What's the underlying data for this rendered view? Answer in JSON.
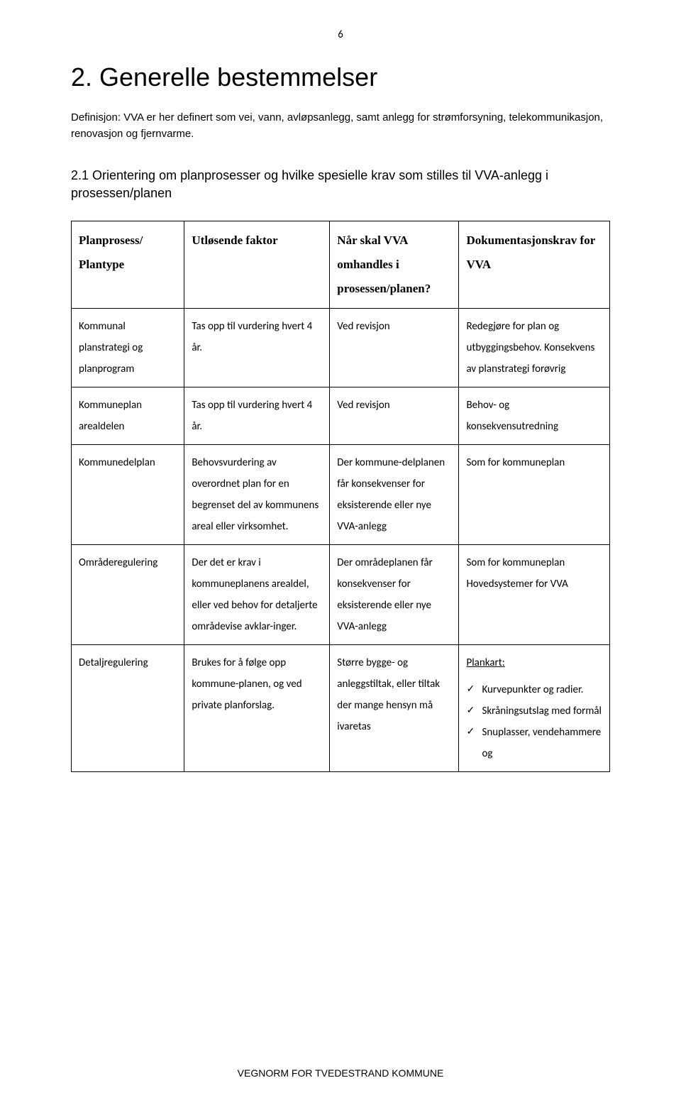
{
  "page_number": "6",
  "heading": "2. Generelle bestemmelser",
  "definition": "Definisjon: VVA er her definert som vei, vann, avløpsanlegg, samt anlegg for strømforsyning, telekommunikasjon, renovasjon og fjernvarme.",
  "subheading": "2.1 Orientering om planprosesser og hvilke spesielle krav som stilles til VVA-anlegg i prosessen/planen",
  "table": {
    "headers": {
      "h0a": "Planprosess/",
      "h0b": "Plantype",
      "h1": "Utløsende faktor",
      "h2a": "Når skal VVA",
      "h2b": "omhandles i",
      "h2c": "prosessen/planen?",
      "h3a": "Dokumentasjonskrav for",
      "h3b": "VVA"
    },
    "rows": [
      {
        "c0": "Kommunal planstrategi og planprogram",
        "c1": "Tas opp til vurdering hvert 4 år.",
        "c2": "Ved revisjon",
        "c3": "Redegjøre for plan og utbyggingsbehov. Konsekvens av planstrategi forøvrig"
      },
      {
        "c0": "Kommuneplan arealdelen",
        "c1": "Tas opp til vurdering hvert 4 år.",
        "c2": "Ved revisjon",
        "c3": "Behov- og konsekvensutredning"
      },
      {
        "c0": "Kommunedelplan",
        "c1": "Behovsvurdering av overordnet plan for en begrenset del av kommunens areal eller virksomhet.",
        "c2": "Der kommune-delplanen får konsekvenser for eksisterende eller nye VVA-anlegg",
        "c3": "Som for kommuneplan"
      },
      {
        "c0": "Områderegulering",
        "c1": "Der det er krav i kommuneplanens arealdel, eller ved behov for detaljerte områdevise avklar-inger.",
        "c2": "Der områdeplanen får konsekvenser for eksisterende eller nye VVA-anlegg",
        "c3a": "Som for kommuneplan",
        "c3b": "Hovedsystemer for VVA"
      },
      {
        "c0": "Detaljregulering",
        "c1": "Brukes for å følge opp kommune-planen, og ved private planforslag.",
        "c2": "Større bygge- og anleggstiltak, eller tiltak der mange hensyn må ivaretas",
        "c3_title": "Plankart:",
        "c3_items": [
          "Kurvepunkter og radier.",
          "Skråningsutslag med formål",
          "Snuplasser, vendehammere og"
        ]
      }
    ]
  },
  "footer": "VEGNORM FOR TVEDESTRAND KOMMUNE"
}
